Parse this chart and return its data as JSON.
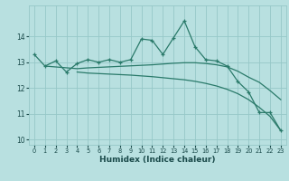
{
  "xlabel": "Humidex (Indice chaleur)",
  "xlim": [
    -0.5,
    23.5
  ],
  "ylim": [
    9.8,
    15.2
  ],
  "yticks": [
    10,
    11,
    12,
    13,
    14
  ],
  "xticks": [
    0,
    1,
    2,
    3,
    4,
    5,
    6,
    7,
    8,
    9,
    10,
    11,
    12,
    13,
    14,
    15,
    16,
    17,
    18,
    19,
    20,
    21,
    22,
    23
  ],
  "bg_color": "#b8e0e0",
  "grid_color": "#96c8c8",
  "line_color": "#2a7a6a",
  "lines": [
    {
      "x": [
        0,
        1,
        2,
        3,
        4,
        5,
        6,
        7,
        8,
        9,
        10,
        11,
        12,
        13,
        14,
        15,
        16,
        17,
        18,
        19,
        20,
        21,
        22,
        23
      ],
      "y": [
        13.3,
        12.85,
        13.05,
        12.62,
        12.95,
        13.1,
        13.0,
        13.1,
        13.0,
        13.1,
        13.9,
        13.85,
        13.3,
        13.95,
        14.6,
        13.6,
        13.1,
        13.05,
        12.85,
        12.25,
        11.85,
        11.05,
        11.05,
        10.35
      ],
      "marker": "+"
    },
    {
      "x": [
        1,
        4,
        5,
        6,
        7,
        8,
        9,
        10,
        11,
        12,
        13,
        14,
        15,
        16,
        17,
        18,
        19,
        20,
        21,
        22,
        23
      ],
      "y": [
        12.85,
        12.75,
        12.78,
        12.8,
        12.82,
        12.84,
        12.86,
        12.88,
        12.9,
        12.93,
        12.96,
        12.98,
        12.98,
        12.95,
        12.9,
        12.82,
        12.65,
        12.42,
        12.22,
        11.9,
        11.55
      ],
      "marker": null
    },
    {
      "x": [
        4,
        5,
        6,
        7,
        8,
        9,
        10,
        11,
        12,
        13,
        14,
        15,
        16,
        17,
        18,
        19,
        20,
        21,
        22,
        23
      ],
      "y": [
        12.62,
        12.58,
        12.56,
        12.54,
        12.52,
        12.5,
        12.47,
        12.44,
        12.4,
        12.36,
        12.32,
        12.26,
        12.18,
        12.08,
        11.95,
        11.78,
        11.55,
        11.25,
        10.9,
        10.35
      ],
      "marker": null
    }
  ]
}
